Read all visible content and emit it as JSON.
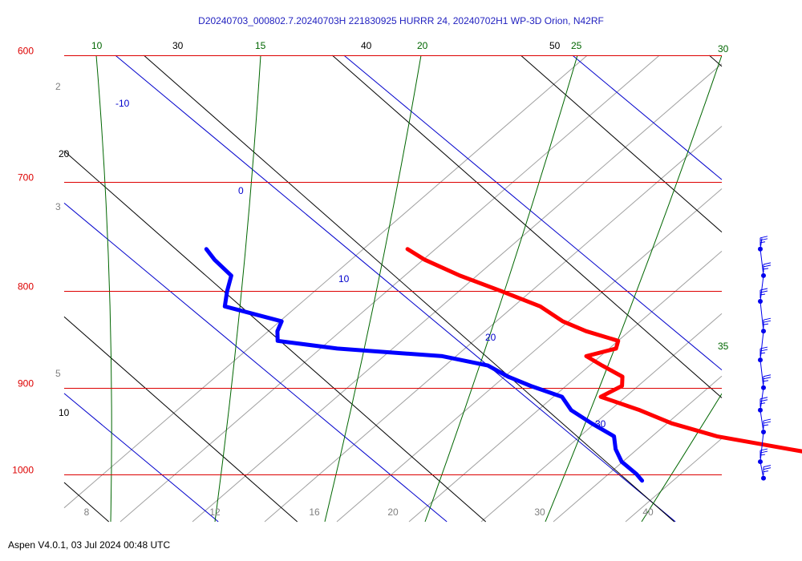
{
  "header": {
    "title": "D20240703_000802.7.20240703H 221830925 HURRR 24, 20240702H1 WP-3D Orion, N42RF"
  },
  "footer": {
    "version_text": "Aspen V4.0.1, 03 Jul 2024  00:48 UTC"
  },
  "colors": {
    "isobar": "#dd0000",
    "isotherm": "#0000cc",
    "dry_adiabat": "#000000",
    "moist_adiabat": "#006600",
    "mixing_ratio": "#a0a0a0",
    "temperature_trace": "#ff0000",
    "dewpoint_trace": "#0000ff",
    "wind_barbs": "#0000ee"
  },
  "chart_data": {
    "type": "skew-t",
    "title": "D20240703_000802.7.20240703H 221830925 HURRR 24, 20240702H1 WP-3D Orion, N42RF",
    "pressure_levels": [
      "600",
      "700",
      "800",
      "900",
      "1000"
    ],
    "isotherm_labels": [
      "-10",
      "0",
      "10",
      "20",
      "30"
    ],
    "dry_adiabat_labels": [
      "20",
      "30",
      "40",
      "50",
      "10"
    ],
    "moist_adiabat_labels": [
      "10",
      "15",
      "20",
      "25",
      "30",
      "35"
    ],
    "mixing_ratio_labels": [
      "2",
      "3",
      "5"
    ],
    "bottom_axis_ticks": [
      "8",
      "12",
      "16",
      "20",
      "30",
      "40"
    ],
    "series": [
      {
        "name": "Temperature",
        "color": "#ff0000",
        "pressure": [
          760,
          770,
          785,
          800,
          815,
          830,
          840,
          850,
          858,
          866,
          876,
          888,
          898,
          910,
          925,
          940,
          955,
          970,
          985,
          1000,
          1008
        ],
        "temperature": [
          12.6,
          12.8,
          13.5,
          14.5,
          15.4,
          15.6,
          16.1,
          17.0,
          16.5,
          14.8,
          15.0,
          15.3,
          14.8,
          13.3,
          14.3,
          15.0,
          16.3,
          18.8,
          21.3,
          23.8,
          25.0
        ]
      },
      {
        "name": "Dewpoint",
        "color": "#0000ff",
        "pressure": [
          760,
          770,
          785,
          800,
          815,
          830,
          840,
          850,
          858,
          866,
          876,
          888,
          898,
          910,
          925,
          940,
          955,
          970,
          985,
          1000,
          1008
        ],
        "dewpoint": [
          3.8,
          3.6,
          3.5,
          2.5,
          1.6,
          3.3,
          2.6,
          2.1,
          4.3,
          8.5,
          10.0,
          10.3,
          10.8,
          11.6,
          11.3,
          11.5,
          11.8,
          11.2,
          10.8,
          10.8,
          10.7
        ]
      }
    ],
    "wind_profile": {
      "pressure": [
        760,
        785,
        810,
        840,
        870,
        900,
        925,
        950,
        985,
        1005
      ]
    }
  }
}
